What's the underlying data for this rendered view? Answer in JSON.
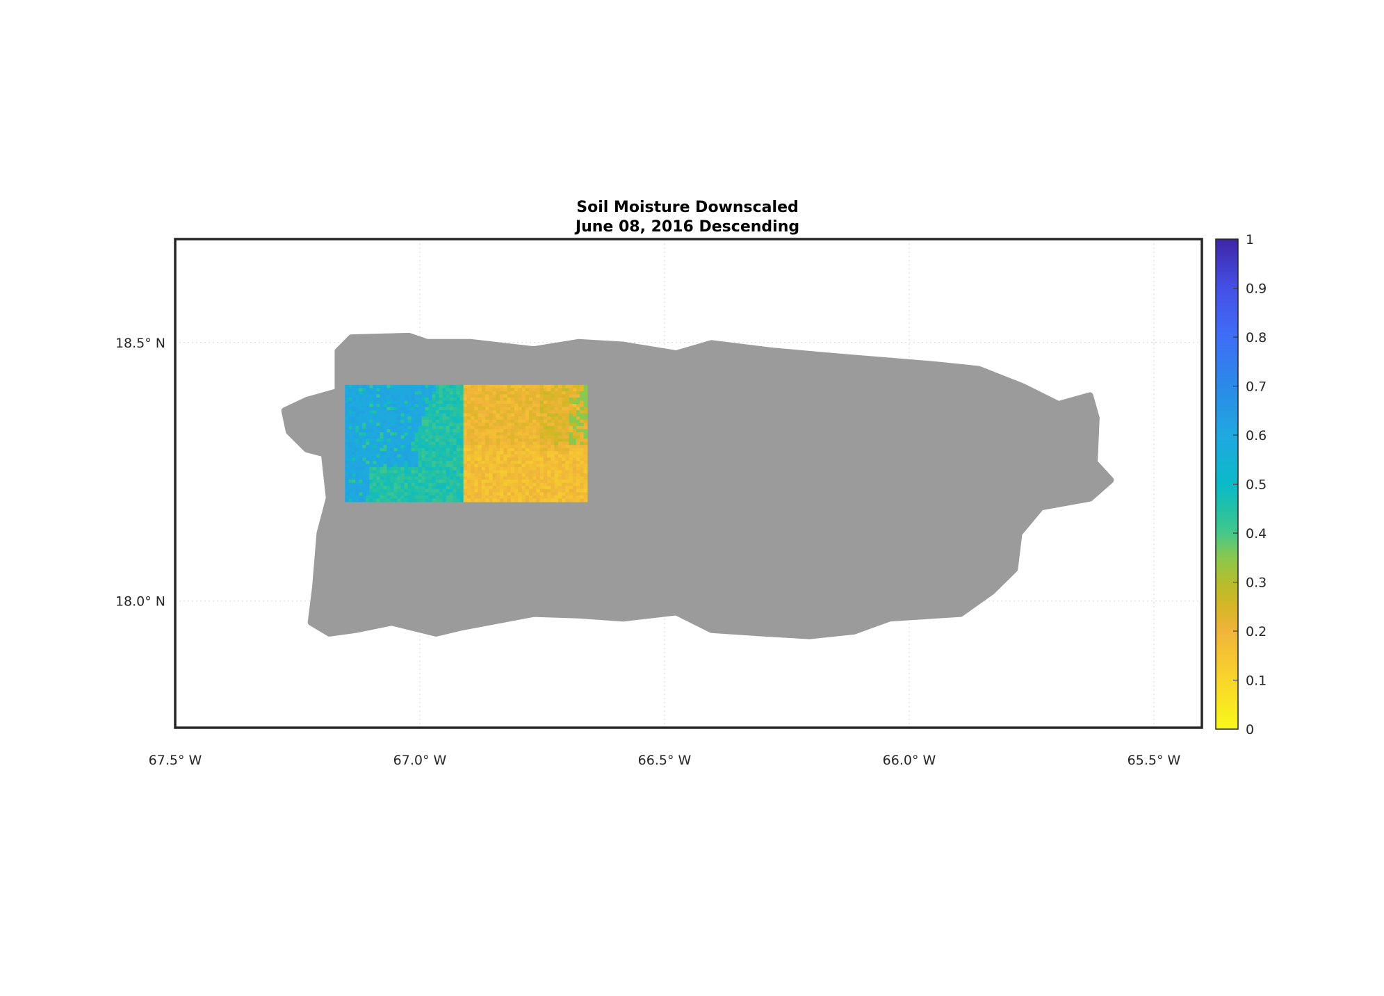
{
  "title_line1": "Soil Moisture Downscaled",
  "title_line2": "June 08, 2016 Descending",
  "chart_data": {
    "type": "map-scatter",
    "title": "Soil Moisture Downscaled\nJune 08, 2016 Descending",
    "xlim": [
      -67.5,
      -65.402
    ],
    "ylim": [
      17.755,
      18.7
    ],
    "grid": true,
    "x_ticks": [
      {
        "value": -67.5,
        "label": "67.5° W"
      },
      {
        "value": -67.0,
        "label": "67.0° W"
      },
      {
        "value": -66.5,
        "label": "66.5° W"
      },
      {
        "value": -66.0,
        "label": "66.0° W"
      },
      {
        "value": -65.5,
        "label": "65.5° W"
      }
    ],
    "y_ticks": [
      {
        "value": 18.5,
        "label": "18.5° N"
      },
      {
        "value": 18.0,
        "label": "18.0° N"
      }
    ],
    "no_data_color": "#9b9b9b",
    "land_outline_lonlat": [
      [
        -67.276,
        18.368
      ],
      [
        -67.231,
        18.388
      ],
      [
        -67.167,
        18.405
      ],
      [
        -67.167,
        18.483
      ],
      [
        -67.14,
        18.509
      ],
      [
        -67.022,
        18.512
      ],
      [
        -66.985,
        18.5
      ],
      [
        -66.895,
        18.5
      ],
      [
        -66.767,
        18.486
      ],
      [
        -66.676,
        18.5
      ],
      [
        -66.585,
        18.495
      ],
      [
        -66.476,
        18.478
      ],
      [
        -66.404,
        18.498
      ],
      [
        -66.276,
        18.483
      ],
      [
        -66.131,
        18.471
      ],
      [
        -65.949,
        18.457
      ],
      [
        -65.858,
        18.448
      ],
      [
        -65.767,
        18.414
      ],
      [
        -65.695,
        18.38
      ],
      [
        -65.631,
        18.397
      ],
      [
        -65.618,
        18.354
      ],
      [
        -65.622,
        18.268
      ],
      [
        -65.589,
        18.234
      ],
      [
        -65.631,
        18.199
      ],
      [
        -65.731,
        18.182
      ],
      [
        -65.776,
        18.131
      ],
      [
        -65.785,
        18.062
      ],
      [
        -65.831,
        18.019
      ],
      [
        -65.895,
        17.976
      ],
      [
        -66.04,
        17.967
      ],
      [
        -66.113,
        17.942
      ],
      [
        -66.204,
        17.933
      ],
      [
        -66.295,
        17.938
      ],
      [
        -66.404,
        17.945
      ],
      [
        -66.476,
        17.979
      ],
      [
        -66.585,
        17.967
      ],
      [
        -66.676,
        17.973
      ],
      [
        -66.767,
        17.976
      ],
      [
        -66.913,
        17.95
      ],
      [
        -66.967,
        17.938
      ],
      [
        -67.058,
        17.959
      ],
      [
        -67.131,
        17.945
      ],
      [
        -67.185,
        17.938
      ],
      [
        -67.222,
        17.959
      ],
      [
        -67.213,
        18.027
      ],
      [
        -67.204,
        18.131
      ],
      [
        -67.185,
        18.199
      ],
      [
        -67.195,
        18.285
      ],
      [
        -67.231,
        18.294
      ],
      [
        -67.267,
        18.328
      ]
    ],
    "tiles": [
      {
        "lon": [
          -67.153,
          -66.911
        ],
        "lat": [
          18.192,
          18.418
        ],
        "dominant_value": 0.45,
        "wet_area_value": 0.6
      },
      {
        "lon": [
          -66.911,
          -66.658
        ],
        "lat": [
          18.192,
          18.418
        ],
        "dominant_value": 0.2
      }
    ],
    "colorbar": {
      "range": [
        0,
        1
      ],
      "ticks": [
        "0",
        "0.1",
        "0.2",
        "0.3",
        "0.4",
        "0.5",
        "0.6",
        "0.7",
        "0.8",
        "0.9",
        "1"
      ],
      "colormap": "parula (reversed)",
      "stops": [
        [
          0,
          "#f8f81a"
        ],
        [
          0.1,
          "#f9d52a"
        ],
        [
          0.2,
          "#f0b43a"
        ],
        [
          0.25,
          "#d6b626"
        ],
        [
          0.3,
          "#b4bd2c"
        ],
        [
          0.35,
          "#8ac84e"
        ],
        [
          0.4,
          "#44c88a"
        ],
        [
          0.45,
          "#22c0a6"
        ],
        [
          0.5,
          "#0bbac8"
        ],
        [
          0.6,
          "#1fa8e0"
        ],
        [
          0.7,
          "#2b8ae8"
        ],
        [
          0.8,
          "#3f6ef7"
        ],
        [
          0.9,
          "#4550e6"
        ],
        [
          1,
          "#3e26a8"
        ]
      ]
    }
  }
}
